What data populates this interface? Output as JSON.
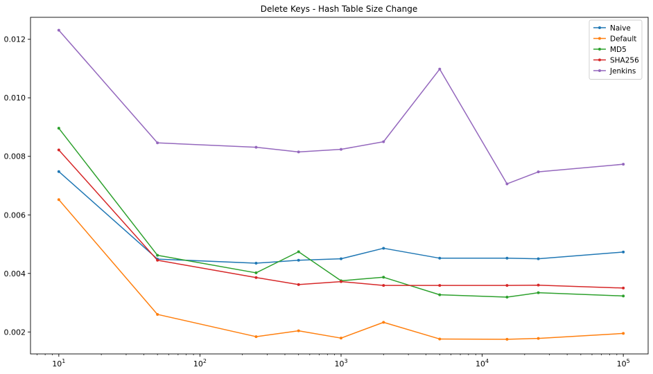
{
  "chart_data": {
    "type": "line",
    "title": "Delete Keys - Hash Table Size Change",
    "xlabel": "",
    "ylabel": "",
    "xscale": "log",
    "xlim": [
      6.3,
      150000
    ],
    "ylim": [
      0.00125,
      0.01275
    ],
    "x": [
      10,
      50,
      250,
      500,
      1000,
      2000,
      5000,
      15000,
      25000,
      100000
    ],
    "x_tick_labels": [
      {
        "value": 10,
        "base": "10",
        "exp": "1"
      },
      {
        "value": 100,
        "base": "10",
        "exp": "2"
      },
      {
        "value": 1000,
        "base": "10",
        "exp": "3"
      },
      {
        "value": 10000,
        "base": "10",
        "exp": "4"
      },
      {
        "value": 100000,
        "base": "10",
        "exp": "5"
      }
    ],
    "y_ticks": [
      0.002,
      0.004,
      0.006,
      0.008,
      0.01,
      0.012
    ],
    "y_tick_labels": [
      "0.002",
      "0.004",
      "0.006",
      "0.008",
      "0.010",
      "0.012"
    ],
    "grid": false,
    "legend_position": "top-right",
    "series": [
      {
        "name": "Naive",
        "color": "#1f77b4",
        "values": [
          0.00748,
          0.00449,
          0.00435,
          0.00445,
          0.0045,
          0.00486,
          0.00452,
          0.00452,
          0.0045,
          0.00473
        ]
      },
      {
        "name": "Default",
        "color": "#ff7f0e",
        "values": [
          0.00652,
          0.0026,
          0.00184,
          0.00204,
          0.00179,
          0.00233,
          0.00176,
          0.00175,
          0.00178,
          0.00195
        ]
      },
      {
        "name": "MD5",
        "color": "#2ca02c",
        "values": [
          0.00896,
          0.00462,
          0.00402,
          0.00474,
          0.00375,
          0.00387,
          0.00327,
          0.00319,
          0.00334,
          0.00323
        ]
      },
      {
        "name": "SHA256",
        "color": "#d62728",
        "values": [
          0.00822,
          0.00445,
          0.00386,
          0.00362,
          0.00372,
          0.00359,
          0.00359,
          0.00359,
          0.0036,
          0.0035
        ]
      },
      {
        "name": "Jenkins",
        "color": "#9467bd",
        "values": [
          0.01231,
          0.00846,
          0.00831,
          0.00815,
          0.00824,
          0.0085,
          0.01098,
          0.00706,
          0.00747,
          0.00773
        ]
      }
    ]
  }
}
